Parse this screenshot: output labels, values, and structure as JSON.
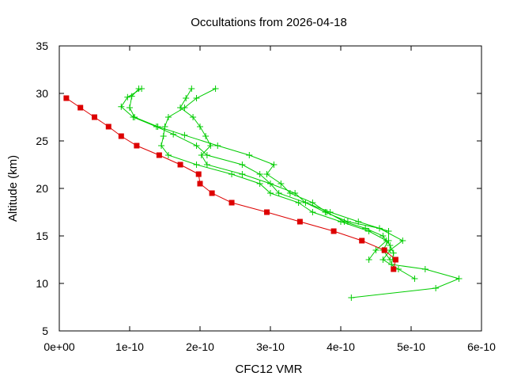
{
  "chart_data": {
    "type": "line",
    "title": "Occultations from 2026-04-18",
    "xlabel": "CFC12 VMR",
    "ylabel": "Altitude (km)",
    "xlim": [
      0,
      6e-10
    ],
    "ylim": [
      5,
      35
    ],
    "xticks": [
      {
        "value": 0,
        "label": "0e+00"
      },
      {
        "value": 1e-10,
        "label": "1e-10"
      },
      {
        "value": 2e-10,
        "label": "2e-10"
      },
      {
        "value": 3e-10,
        "label": "3e-10"
      },
      {
        "value": 4e-10,
        "label": "4e-10"
      },
      {
        "value": 5e-10,
        "label": "5e-10"
      },
      {
        "value": 6e-10,
        "label": "6e-10"
      }
    ],
    "yticks": [
      {
        "value": 5,
        "label": "5"
      },
      {
        "value": 10,
        "label": "10"
      },
      {
        "value": 15,
        "label": "15"
      },
      {
        "value": 20,
        "label": "20"
      },
      {
        "value": 25,
        "label": "25"
      },
      {
        "value": 30,
        "label": "30"
      },
      {
        "value": 35,
        "label": "35"
      }
    ],
    "grid": false,
    "legend": false,
    "series": [
      {
        "color": "#00cc00",
        "marker": "plus",
        "points": [
          [
            1.13e-10,
            30.5
          ],
          [
            1.03e-10,
            29.7
          ],
          [
            1e-10,
            28.5
          ],
          [
            1.07e-10,
            27.5
          ],
          [
            1.4e-10,
            26.5
          ],
          [
            1.78e-10,
            25.6
          ],
          [
            2.25e-10,
            24.5
          ],
          [
            2.7e-10,
            23.5
          ],
          [
            3.05e-10,
            22.5
          ],
          [
            2.95e-10,
            21.5
          ],
          [
            3.15e-10,
            20.5
          ],
          [
            3.28e-10,
            19.5
          ],
          [
            3.6e-10,
            18.5
          ],
          [
            3.8e-10,
            17.5
          ],
          [
            4.05e-10,
            16.5
          ],
          [
            4.35e-10,
            15.8
          ],
          [
            4.6e-10,
            15.0
          ],
          [
            4.7e-10,
            14.0
          ],
          [
            4.75e-10,
            13.2
          ],
          [
            4.72e-10,
            12.0
          ],
          [
            5.2e-10,
            11.5
          ],
          [
            5.68e-10,
            10.5
          ],
          [
            5.35e-10,
            9.5
          ],
          [
            4.15e-10,
            8.5
          ]
        ]
      },
      {
        "color": "#00cc00",
        "marker": "plus",
        "points": [
          [
            1.17e-10,
            30.5
          ],
          [
            9.7e-11,
            29.6
          ],
          [
            8.8e-11,
            28.6
          ],
          [
            1.05e-10,
            27.5
          ],
          [
            1.38e-10,
            26.5
          ],
          [
            1.62e-10,
            25.7
          ],
          [
            1.95e-10,
            24.5
          ],
          [
            2.1e-10,
            23.5
          ],
          [
            2.6e-10,
            22.5
          ],
          [
            2.85e-10,
            21.5
          ],
          [
            3e-10,
            20.5
          ],
          [
            3.12e-10,
            19.5
          ],
          [
            3.5e-10,
            18.5
          ],
          [
            3.78e-10,
            17.5
          ],
          [
            4.1e-10,
            16.5
          ],
          [
            4.55e-10,
            15.8
          ],
          [
            4.88e-10,
            14.5
          ],
          [
            4.7e-10,
            13.5
          ],
          [
            4.6e-10,
            12.5
          ],
          [
            4.82e-10,
            11.5
          ],
          [
            5.05e-10,
            10.5
          ]
        ]
      },
      {
        "color": "#00cc00",
        "marker": "plus",
        "points": [
          [
            2.22e-10,
            30.5
          ],
          [
            1.95e-10,
            29.5
          ],
          [
            1.78e-10,
            28.5
          ],
          [
            1.55e-10,
            27.5
          ],
          [
            1.5e-10,
            26.5
          ],
          [
            1.48e-10,
            25.5
          ],
          [
            1.45e-10,
            24.5
          ],
          [
            1.55e-10,
            23.5
          ],
          [
            1.95e-10,
            22.5
          ],
          [
            2.45e-10,
            21.5
          ],
          [
            2.85e-10,
            20.5
          ],
          [
            3e-10,
            19.5
          ],
          [
            3.4e-10,
            18.5
          ],
          [
            3.6e-10,
            17.5
          ],
          [
            4e-10,
            16.5
          ],
          [
            4.4e-10,
            15.5
          ],
          [
            4.65e-10,
            14.5
          ],
          [
            4.5e-10,
            13.5
          ],
          [
            4.4e-10,
            12.5
          ]
        ]
      },
      {
        "color": "#00cc00",
        "marker": "plus",
        "points": [
          [
            1.88e-10,
            30.5
          ],
          [
            1.8e-10,
            29.5
          ],
          [
            1.72e-10,
            28.5
          ],
          [
            1.9e-10,
            27.5
          ],
          [
            2e-10,
            26.5
          ],
          [
            2.08e-10,
            25.5
          ],
          [
            2.15e-10,
            24.5
          ],
          [
            2.02e-10,
            23.5
          ],
          [
            2.1e-10,
            22.5
          ],
          [
            2.6e-10,
            21.5
          ],
          [
            3e-10,
            20.5
          ],
          [
            3.35e-10,
            19.5
          ],
          [
            3.5e-10,
            18.5
          ],
          [
            3.85e-10,
            17.5
          ],
          [
            4.25e-10,
            16.5
          ],
          [
            4.68e-10,
            15.5
          ],
          [
            4.68e-10,
            14.5
          ],
          [
            4.6e-10,
            13.5
          ],
          [
            4.7e-10,
            12.5
          ]
        ]
      },
      {
        "color": "#dd0000",
        "marker": "square",
        "points": [
          [
            1e-11,
            29.5
          ],
          [
            3e-11,
            28.5
          ],
          [
            5e-11,
            27.5
          ],
          [
            7e-11,
            26.5
          ],
          [
            8.8e-11,
            25.5
          ],
          [
            1.1e-10,
            24.5
          ],
          [
            1.42e-10,
            23.5
          ],
          [
            1.72e-10,
            22.5
          ],
          [
            1.98e-10,
            21.5
          ],
          [
            2e-10,
            20.5
          ],
          [
            2.17e-10,
            19.5
          ],
          [
            2.45e-10,
            18.5
          ],
          [
            2.95e-10,
            17.5
          ],
          [
            3.42e-10,
            16.5
          ],
          [
            3.9e-10,
            15.5
          ],
          [
            4.3e-10,
            14.5
          ],
          [
            4.62e-10,
            13.5
          ],
          [
            4.78e-10,
            12.5
          ],
          [
            4.75e-10,
            11.5
          ]
        ]
      }
    ]
  }
}
